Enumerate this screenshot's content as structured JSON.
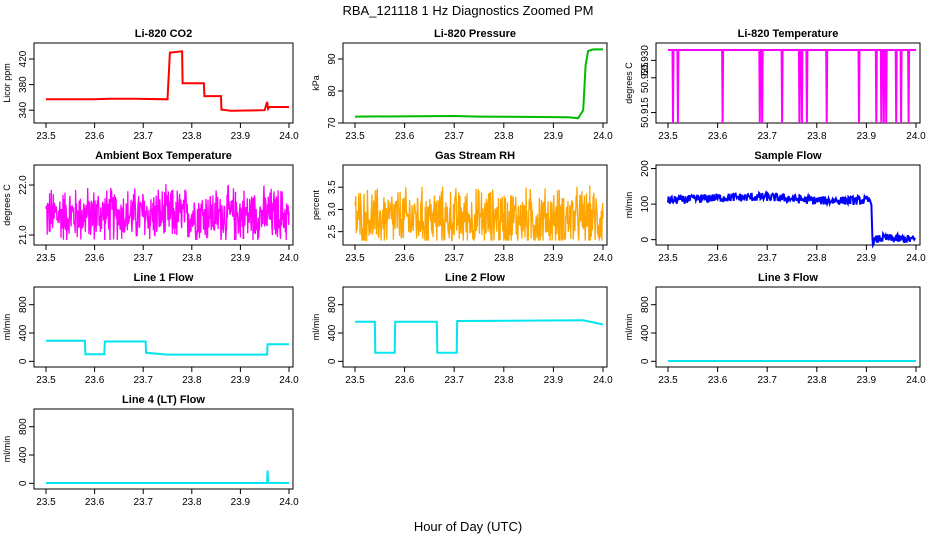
{
  "figure": {
    "title": "RBA_121118  1 Hz Diagnostics Zoomed PM",
    "xlabel": "Hour of Day (UTC)"
  },
  "chart_data": [
    {
      "type": "line",
      "title": "Li-820 CO2",
      "ylabel": "Licor ppm",
      "color": "#ff0000",
      "xlim": [
        23.5,
        24.0
      ],
      "ylim": [
        320,
        445
      ],
      "xticks": [
        "23.5",
        "23.6",
        "23.7",
        "23.8",
        "23.9",
        "24.0"
      ],
      "yticks": [
        340,
        380,
        420
      ],
      "series": [
        {
          "name": "CO2",
          "x": [
            23.5,
            23.6,
            23.63,
            23.68,
            23.75,
            23.755,
            23.78,
            23.781,
            23.825,
            23.826,
            23.86,
            23.861,
            23.88,
            23.95,
            23.955,
            23.957,
            23.96,
            24.0
          ],
          "y": [
            357,
            357,
            358,
            358,
            357,
            430,
            432,
            382,
            382,
            362,
            362,
            341,
            339,
            340,
            353,
            342,
            345,
            345
          ]
        }
      ]
    },
    {
      "type": "line",
      "title": "Li-820 Pressure",
      "ylabel": "kPa",
      "color": "#00bb00",
      "xlim": [
        23.5,
        24.0
      ],
      "ylim": [
        70,
        95
      ],
      "xticks": [
        "23.5",
        "23.6",
        "23.7",
        "23.8",
        "23.9",
        "24.0"
      ],
      "yticks": [
        70,
        80,
        90
      ],
      "series": [
        {
          "name": "Pressure",
          "x": [
            23.5,
            23.7,
            23.75,
            23.93,
            23.95,
            23.96,
            23.965,
            23.97,
            23.98,
            24.0
          ],
          "y": [
            72.0,
            72.2,
            72.0,
            71.8,
            71.5,
            74,
            88,
            92.5,
            93,
            93
          ]
        }
      ]
    },
    {
      "type": "line",
      "title": "Li-820 Temperature",
      "ylabel": "degrees C",
      "color": "#ff00ff",
      "xlim": [
        23.5,
        24.0
      ],
      "ylim": [
        50.912,
        50.935
      ],
      "xticks": [
        "23.5",
        "23.6",
        "23.7",
        "23.8",
        "23.9",
        "24.0"
      ],
      "yticks": [
        "50.915",
        "50.925",
        "50.930"
      ],
      "series": [
        {
          "name": "Temperature",
          "base": 50.933,
          "low": 50.912,
          "dropouts": [
            23.51,
            23.52,
            23.61,
            23.685,
            23.69,
            23.73,
            23.765,
            23.77,
            23.78,
            23.82,
            23.885,
            23.92,
            23.93,
            23.935,
            23.94,
            23.96,
            23.97,
            23.985
          ]
        }
      ]
    },
    {
      "type": "line",
      "title": "Ambient Box Temperature",
      "ylabel": "degrees C",
      "color": "#ff00ff",
      "xlim": [
        23.5,
        24.0
      ],
      "ylim": [
        20.8,
        22.4
      ],
      "xticks": [
        "23.5",
        "23.6",
        "23.7",
        "23.8",
        "23.9",
        "24.0"
      ],
      "yticks": [
        "21.0",
        "22.0"
      ],
      "series": [
        {
          "name": "Box temperature",
          "mean": 21.4,
          "noise_range": [
            20.9,
            22.2
          ]
        }
      ]
    },
    {
      "type": "line",
      "title": "Gas Stream RH",
      "ylabel": "percent",
      "color": "#ffa500",
      "xlim": [
        23.5,
        24.0
      ],
      "ylim": [
        2.2,
        4.0
      ],
      "xticks": [
        "23.5",
        "23.6",
        "23.7",
        "23.8",
        "23.9",
        "24.0"
      ],
      "yticks": [
        "2.5",
        "3.0",
        "3.5"
      ],
      "series": [
        {
          "name": "RH",
          "mean": 2.8,
          "noise_range": [
            2.3,
            3.9
          ]
        }
      ]
    },
    {
      "type": "line",
      "title": "Sample Flow",
      "ylabel": "ml/min",
      "color": "#0000ff",
      "xlim": [
        23.5,
        24.0
      ],
      "ylim": [
        -15,
        210
      ],
      "xticks": [
        "23.5",
        "23.6",
        "23.7",
        "23.8",
        "23.9",
        "24.0"
      ],
      "yticks": [
        0,
        100,
        200
      ],
      "series": [
        {
          "name": "Sample flow",
          "x": [
            23.5,
            23.6,
            23.7,
            23.8,
            23.91,
            23.912,
            23.93,
            24.0
          ],
          "y": [
            110,
            118,
            120,
            110,
            110,
            -5,
            5,
            0
          ]
        }
      ]
    },
    {
      "type": "line",
      "title": "Line 1 Flow",
      "ylabel": "ml/min",
      "color": "#00e5ee",
      "xlim": [
        23.5,
        24.0
      ],
      "ylim": [
        -80,
        1050
      ],
      "xticks": [
        "23.5",
        "23.6",
        "23.7",
        "23.8",
        "23.9",
        "24.0"
      ],
      "yticks": [
        0,
        400,
        800
      ],
      "series": [
        {
          "name": "Line 1",
          "x": [
            23.5,
            23.58,
            23.581,
            23.62,
            23.621,
            23.705,
            23.706,
            23.75,
            23.955,
            23.956,
            24.0
          ],
          "y": [
            290,
            290,
            100,
            100,
            280,
            280,
            120,
            95,
            95,
            240,
            240
          ]
        }
      ]
    },
    {
      "type": "line",
      "title": "Line 2 Flow",
      "ylabel": "ml/min",
      "color": "#00e5ee",
      "xlim": [
        23.5,
        24.0
      ],
      "ylim": [
        -80,
        1050
      ],
      "xticks": [
        "23.5",
        "23.6",
        "23.7",
        "23.8",
        "23.9",
        "24.0"
      ],
      "yticks": [
        0,
        400,
        800
      ],
      "series": [
        {
          "name": "Line 2",
          "x": [
            23.5,
            23.54,
            23.541,
            23.58,
            23.581,
            23.665,
            23.666,
            23.705,
            23.706,
            23.96,
            24.0
          ],
          "y": [
            560,
            560,
            120,
            120,
            560,
            560,
            120,
            120,
            570,
            580,
            520
          ]
        }
      ]
    },
    {
      "type": "line",
      "title": "Line 3 Flow",
      "ylabel": "ml/min",
      "color": "#00e5ee",
      "xlim": [
        23.5,
        24.0
      ],
      "ylim": [
        -80,
        1050
      ],
      "xticks": [
        "23.5",
        "23.6",
        "23.7",
        "23.8",
        "23.9",
        "24.0"
      ],
      "yticks": [
        0,
        400,
        800
      ],
      "series": [
        {
          "name": "Line 3",
          "x": [
            23.5,
            24.0
          ],
          "y": [
            5,
            5
          ]
        }
      ]
    },
    {
      "type": "line",
      "title": "Line 4 (LT) Flow",
      "ylabel": "ml/min",
      "color": "#00e5ee",
      "xlim": [
        23.5,
        24.0
      ],
      "ylim": [
        -80,
        1050
      ],
      "xticks": [
        "23.5",
        "23.6",
        "23.7",
        "23.8",
        "23.9",
        "24.0"
      ],
      "yticks": [
        0,
        400,
        800
      ],
      "series": [
        {
          "name": "Line 4",
          "x": [
            23.5,
            23.955,
            23.956,
            23.957,
            24.0
          ],
          "y": [
            5,
            5,
            180,
            8,
            5
          ]
        }
      ]
    }
  ]
}
